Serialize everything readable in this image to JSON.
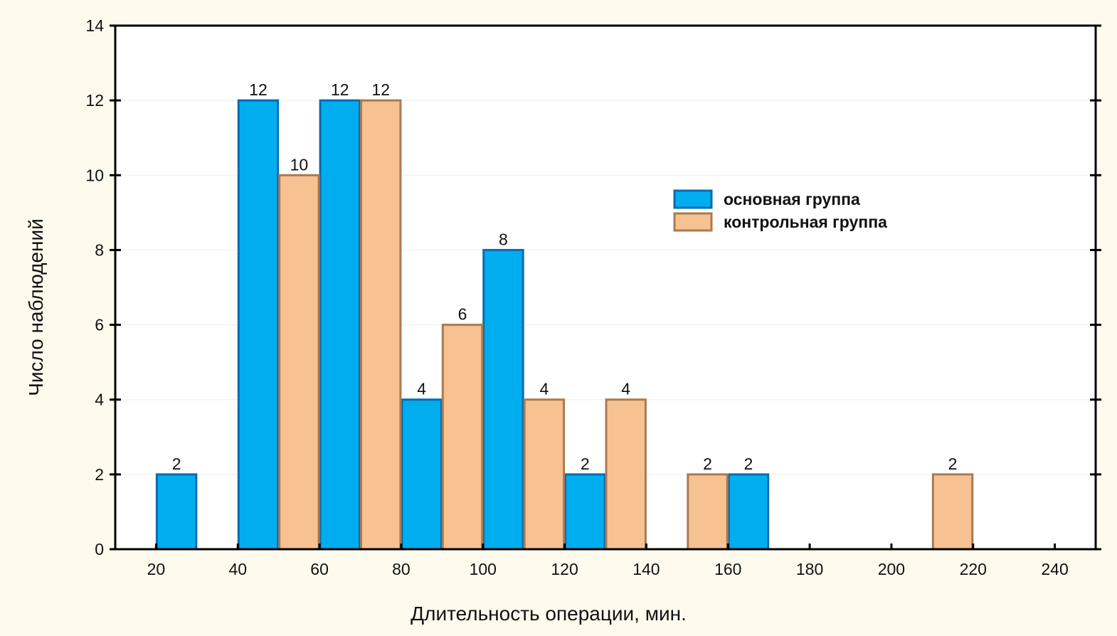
{
  "chart_data": {
    "type": "bar",
    "title": "",
    "xlabel": "Длительность операции, мин.",
    "ylabel": "Число наблюдений",
    "xlim": [
      10,
      250
    ],
    "ylim": [
      0,
      14
    ],
    "xticks": [
      20,
      40,
      60,
      80,
      100,
      120,
      140,
      160,
      180,
      200,
      220,
      240
    ],
    "yticks": [
      0,
      2,
      4,
      6,
      8,
      10,
      12,
      14
    ],
    "grid": true,
    "legend_position": "upper-right",
    "bin_width": 10,
    "series": [
      {
        "name": "основная группа",
        "color": "#00AEEF",
        "edge": "#0A6BAF",
        "bins": [
          {
            "from": 20,
            "to": 30,
            "value": 2
          },
          {
            "from": 40,
            "to": 50,
            "value": 12
          },
          {
            "from": 60,
            "to": 70,
            "value": 12
          },
          {
            "from": 80,
            "to": 90,
            "value": 4
          },
          {
            "from": 100,
            "to": 110,
            "value": 8
          },
          {
            "from": 120,
            "to": 130,
            "value": 2
          },
          {
            "from": 160,
            "to": 170,
            "value": 2
          }
        ]
      },
      {
        "name": "контрольная группа",
        "color": "#F8C192",
        "edge": "#A97A52",
        "bins": [
          {
            "from": 50,
            "to": 60,
            "value": 10
          },
          {
            "from": 70,
            "to": 80,
            "value": 12
          },
          {
            "from": 90,
            "to": 100,
            "value": 6
          },
          {
            "from": 110,
            "to": 120,
            "value": 4
          },
          {
            "from": 130,
            "to": 140,
            "value": 4
          },
          {
            "from": 150,
            "to": 160,
            "value": 2
          },
          {
            "from": 210,
            "to": 220,
            "value": 2
          }
        ]
      }
    ]
  }
}
